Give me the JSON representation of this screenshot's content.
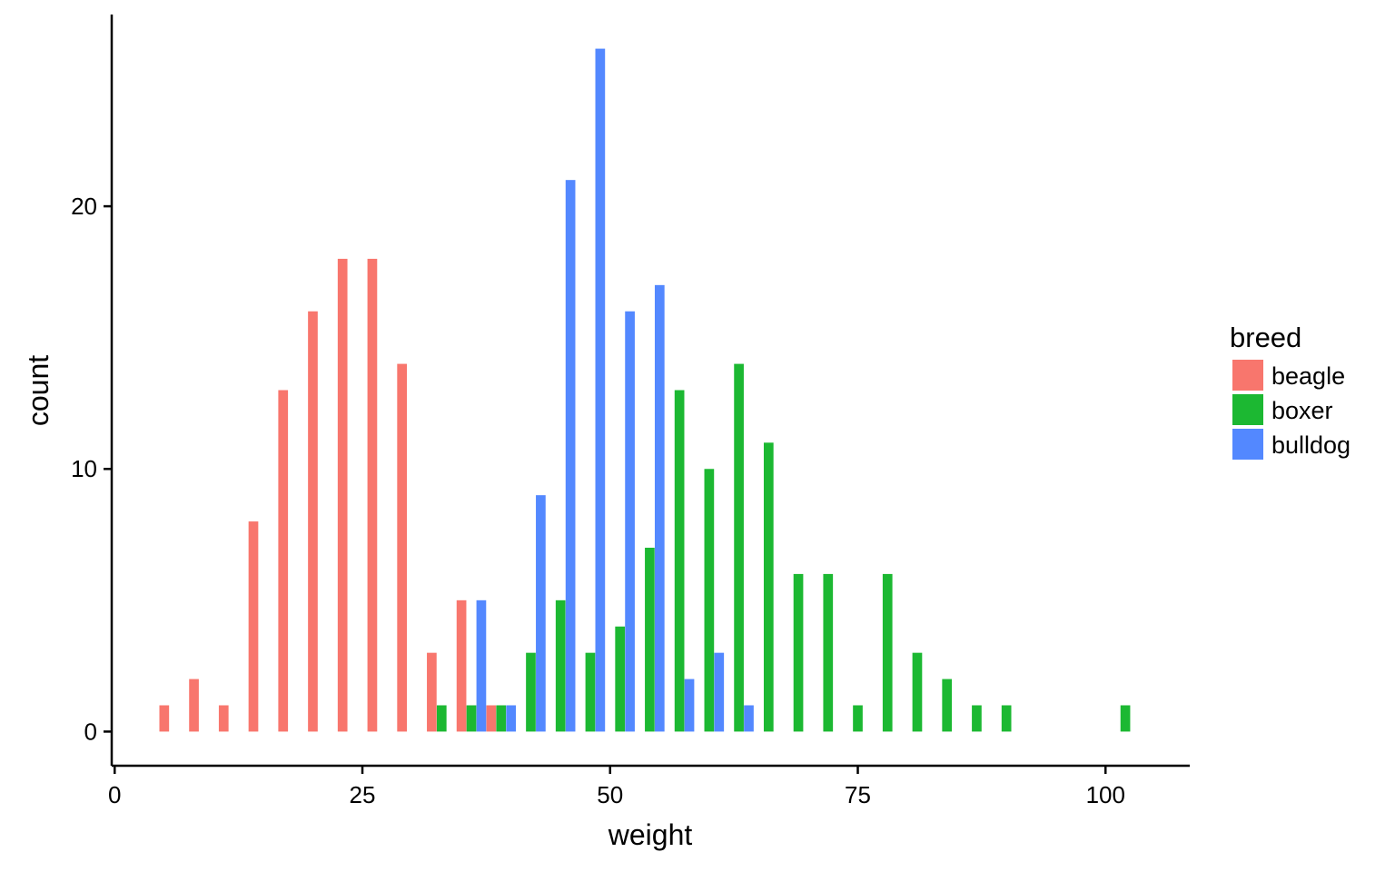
{
  "chart_data": {
    "type": "bar",
    "xlabel": "weight",
    "ylabel": "count",
    "xlim": [
      -0.3,
      108.5
    ],
    "ylim": [
      -1.3,
      27.3
    ],
    "x_ticks": [
      {
        "value": 0,
        "label": "0"
      },
      {
        "value": 25,
        "label": "25"
      },
      {
        "value": 50,
        "label": "50"
      },
      {
        "value": 75,
        "label": "75"
      },
      {
        "value": 100,
        "label": "100"
      }
    ],
    "y_ticks": [
      {
        "value": 0,
        "label": "0"
      },
      {
        "value": 10,
        "label": "10"
      },
      {
        "value": 20,
        "label": "20"
      }
    ],
    "grid": false,
    "legend": {
      "title": "breed",
      "position": "right"
    },
    "bin_width": 3,
    "series": [
      {
        "name": "beagle",
        "color": "#F8766D",
        "points": [
          {
            "x": 6,
            "y": 1
          },
          {
            "x": 9,
            "y": 2
          },
          {
            "x": 12,
            "y": 1
          },
          {
            "x": 15,
            "y": 8
          },
          {
            "x": 18,
            "y": 13
          },
          {
            "x": 21,
            "y": 16
          },
          {
            "x": 24,
            "y": 18
          },
          {
            "x": 27,
            "y": 18
          },
          {
            "x": 30,
            "y": 14
          },
          {
            "x": 33,
            "y": 3
          },
          {
            "x": 36,
            "y": 5
          },
          {
            "x": 39,
            "y": 1
          }
        ]
      },
      {
        "name": "boxer",
        "color": "#1CB832",
        "points": [
          {
            "x": 33,
            "y": 1
          },
          {
            "x": 36,
            "y": 1
          },
          {
            "x": 39,
            "y": 1
          },
          {
            "x": 42,
            "y": 3
          },
          {
            "x": 45,
            "y": 5
          },
          {
            "x": 48,
            "y": 3
          },
          {
            "x": 51,
            "y": 4
          },
          {
            "x": 54,
            "y": 7
          },
          {
            "x": 57,
            "y": 13
          },
          {
            "x": 60,
            "y": 10
          },
          {
            "x": 63,
            "y": 14
          },
          {
            "x": 66,
            "y": 11
          },
          {
            "x": 69,
            "y": 6
          },
          {
            "x": 72,
            "y": 6
          },
          {
            "x": 75,
            "y": 1
          },
          {
            "x": 78,
            "y": 6
          },
          {
            "x": 81,
            "y": 3
          },
          {
            "x": 84,
            "y": 2
          },
          {
            "x": 87,
            "y": 1
          },
          {
            "x": 90,
            "y": 1
          },
          {
            "x": 102,
            "y": 1
          }
        ]
      },
      {
        "name": "bulldog",
        "color": "#5388FF",
        "points": [
          {
            "x": 36,
            "y": 5
          },
          {
            "x": 39,
            "y": 1
          },
          {
            "x": 42,
            "y": 9
          },
          {
            "x": 45,
            "y": 21
          },
          {
            "x": 48,
            "y": 26
          },
          {
            "x": 51,
            "y": 16
          },
          {
            "x": 54,
            "y": 17
          },
          {
            "x": 57,
            "y": 2
          },
          {
            "x": 60,
            "y": 3
          },
          {
            "x": 63,
            "y": 1
          }
        ]
      }
    ]
  }
}
